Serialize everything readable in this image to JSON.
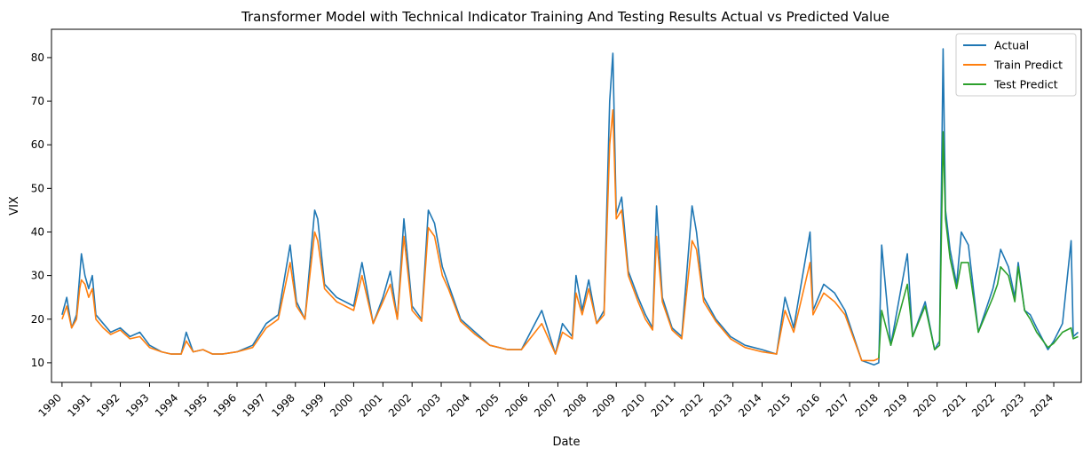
{
  "chart_data": {
    "type": "line",
    "title": "Transformer Model with Technical Indicator Training And Testing Results Actual vs Predicted Value",
    "xlabel": "Date",
    "ylabel": "VIX",
    "xlim": [
      "1989-08-22",
      "2024-12-10"
    ],
    "ylim": [
      5.5,
      86.5
    ],
    "yticks": [
      10,
      20,
      30,
      40,
      50,
      60,
      70,
      80
    ],
    "xticks": [
      "1990",
      "1991",
      "1992",
      "1993",
      "1994",
      "1995",
      "1996",
      "1997",
      "1998",
      "1999",
      "2000",
      "2001",
      "2002",
      "2003",
      "2004",
      "2005",
      "2006",
      "2007",
      "2008",
      "2009",
      "2010",
      "2011",
      "2012",
      "2013",
      "2014",
      "2015",
      "2016",
      "2017",
      "2018",
      "2019",
      "2020",
      "2021",
      "2022",
      "2023",
      "2024"
    ],
    "grid": false,
    "legend_position": "top-right",
    "colors": {
      "actual": "#1f77b4",
      "train": "#ff7f0e",
      "test": "#2ca02c"
    },
    "series": [
      {
        "name": "Actual",
        "x": [
          "1990-01-01",
          "1990-03-01",
          "1990-05-01",
          "1990-07-01",
          "1990-08-10",
          "1990-09-01",
          "1990-10-15",
          "1990-12-01",
          "1991-01-15",
          "1991-03-01",
          "1991-06-01",
          "1991-09-01",
          "1992-01-01",
          "1992-05-01",
          "1992-09-01",
          "1993-01-01",
          "1993-06-01",
          "1993-10-01",
          "1994-02-01",
          "1994-04-05",
          "1994-07-01",
          "1994-11-01",
          "1995-03-01",
          "1995-07-01",
          "1996-01-01",
          "1996-07-15",
          "1997-01-01",
          "1997-06-01",
          "1997-10-27",
          "1998-01-15",
          "1998-05-01",
          "1998-08-31",
          "1998-10-08",
          "1999-01-01",
          "1999-06-01",
          "2000-01-01",
          "2000-04-14",
          "2000-09-01",
          "2001-01-01",
          "2001-04-04",
          "2001-07-01",
          "2001-09-21",
          "2002-01-01",
          "2002-05-01",
          "2002-07-24",
          "2002-10-09",
          "2003-01-15",
          "2003-04-01",
          "2003-09-01",
          "2004-03-01",
          "2004-09-01",
          "2005-04-15",
          "2005-10-01",
          "2006-06-13",
          "2006-12-01",
          "2007-02-27",
          "2007-07-01",
          "2007-08-16",
          "2007-11-01",
          "2008-01-22",
          "2008-05-01",
          "2008-08-01",
          "2008-10-10",
          "2008-11-20",
          "2009-01-01",
          "2009-03-09",
          "2009-06-01",
          "2009-10-01",
          "2010-01-01",
          "2010-04-01",
          "2010-05-20",
          "2010-08-01",
          "2010-12-01",
          "2011-04-01",
          "2011-08-08",
          "2011-10-03",
          "2012-01-01",
          "2012-06-01",
          "2012-12-01",
          "2013-06-01",
          "2014-01-01",
          "2014-07-01",
          "2014-10-15",
          "2015-02-01",
          "2015-08-24",
          "2015-10-01",
          "2016-02-11",
          "2016-06-27",
          "2016-11-04",
          "2017-06-01",
          "2017-11-01",
          "2018-01-01",
          "2018-02-06",
          "2018-06-01",
          "2018-12-24",
          "2019-03-01",
          "2019-08-05",
          "2019-12-01",
          "2020-02-01",
          "2020-03-16",
          "2020-04-15",
          "2020-06-11",
          "2020-09-01",
          "2020-10-30",
          "2021-01-27",
          "2021-06-01",
          "2021-11-30",
          "2022-01-27",
          "2022-03-07",
          "2022-06-13",
          "2022-09-01",
          "2022-10-13",
          "2023-01-01",
          "2023-03-13",
          "2023-06-01",
          "2023-10-20",
          "2024-01-01",
          "2024-04-19",
          "2024-08-05",
          "2024-09-01",
          "2024-11-01"
        ],
        "y": [
          21,
          25,
          18,
          21,
          30,
          35,
          30,
          27,
          30,
          21,
          19,
          17,
          18,
          16,
          17,
          14,
          12.5,
          12,
          12,
          17,
          12.5,
          13,
          12,
          12,
          12.5,
          14,
          19,
          21,
          37,
          24,
          20,
          45,
          43,
          28,
          25,
          23,
          33,
          19,
          25,
          31,
          20,
          43,
          23,
          20,
          45,
          42,
          32,
          28,
          20,
          17,
          14,
          13,
          13,
          22,
          12,
          19,
          16,
          30,
          22,
          29,
          19,
          22,
          70,
          81,
          44,
          48,
          31,
          25,
          21,
          18,
          46,
          25,
          18,
          16,
          46,
          40,
          25,
          20,
          16,
          14,
          13,
          12,
          25,
          18,
          40,
          22,
          28,
          26,
          22,
          10.5,
          9.5,
          10,
          37,
          14,
          35,
          16,
          24,
          13,
          15,
          82,
          45,
          36,
          28,
          40,
          37,
          17,
          27,
          32,
          36,
          32,
          25,
          33,
          22,
          21,
          18,
          13,
          15,
          19,
          38,
          16,
          17
        ]
      },
      {
        "name": "Train Predict",
        "x": [
          "1990-01-01",
          "1990-03-01",
          "1990-05-01",
          "1990-07-01",
          "1990-08-10",
          "1990-09-01",
          "1990-10-15",
          "1990-12-01",
          "1991-01-15",
          "1991-03-01",
          "1991-06-01",
          "1991-09-01",
          "1992-01-01",
          "1992-05-01",
          "1992-09-01",
          "1993-01-01",
          "1993-06-01",
          "1993-10-01",
          "1994-02-01",
          "1994-04-05",
          "1994-07-01",
          "1994-11-01",
          "1995-03-01",
          "1995-07-01",
          "1996-01-01",
          "1996-07-15",
          "1997-01-01",
          "1997-06-01",
          "1997-10-27",
          "1998-01-15",
          "1998-05-01",
          "1998-08-31",
          "1998-10-08",
          "1999-01-01",
          "1999-06-01",
          "2000-01-01",
          "2000-04-14",
          "2000-09-01",
          "2001-01-01",
          "2001-04-04",
          "2001-07-01",
          "2001-09-21",
          "2002-01-01",
          "2002-05-01",
          "2002-07-24",
          "2002-10-09",
          "2003-01-15",
          "2003-04-01",
          "2003-09-01",
          "2004-03-01",
          "2004-09-01",
          "2005-04-15",
          "2005-10-01",
          "2006-06-13",
          "2006-12-01",
          "2007-02-27",
          "2007-07-01",
          "2007-08-16",
          "2007-11-01",
          "2008-01-22",
          "2008-05-01",
          "2008-08-01",
          "2008-10-10",
          "2008-11-20",
          "2009-01-01",
          "2009-03-09",
          "2009-06-01",
          "2009-10-01",
          "2010-01-01",
          "2010-04-01",
          "2010-05-20",
          "2010-08-01",
          "2010-12-01",
          "2011-04-01",
          "2011-08-08",
          "2011-10-03",
          "2012-01-01",
          "2012-06-01",
          "2012-12-01",
          "2013-06-01",
          "2014-01-01",
          "2014-07-01",
          "2014-10-15",
          "2015-02-01",
          "2015-08-24",
          "2015-10-01",
          "2016-02-11",
          "2016-06-27",
          "2016-11-04",
          "2017-06-01",
          "2017-11-01",
          "2018-01-01"
        ],
        "y": [
          20,
          23,
          18,
          20,
          27,
          29,
          28,
          25,
          27,
          20,
          18,
          16.5,
          17.5,
          15.5,
          16,
          13.5,
          12.5,
          12,
          12,
          15,
          12.5,
          13,
          12,
          12,
          12.5,
          13.5,
          18,
          20,
          33,
          23,
          20,
          40,
          38,
          27,
          24,
          22,
          30,
          19,
          24,
          28,
          20,
          39,
          22,
          19.5,
          41,
          39,
          30,
          27,
          19.5,
          16.5,
          14,
          13,
          13,
          19,
          12,
          17,
          15.5,
          26,
          21,
          27,
          19,
          21,
          60,
          68,
          43,
          45,
          30,
          24,
          20,
          17.5,
          39,
          24,
          17.5,
          15.5,
          38,
          36,
          24,
          19.5,
          15.5,
          13.5,
          12.5,
          12,
          22,
          17,
          33,
          21,
          26,
          24,
          21,
          10.5,
          10.5,
          11
        ]
      },
      {
        "name": "Test Predict",
        "x": [
          "2018-01-01",
          "2018-02-06",
          "2018-06-01",
          "2018-12-24",
          "2019-03-01",
          "2019-08-05",
          "2019-12-01",
          "2020-02-01",
          "2020-03-16",
          "2020-04-15",
          "2020-06-11",
          "2020-09-01",
          "2020-10-30",
          "2021-01-27",
          "2021-06-01",
          "2021-11-30",
          "2022-01-27",
          "2022-03-07",
          "2022-06-13",
          "2022-09-01",
          "2022-10-13",
          "2023-01-01",
          "2023-03-13",
          "2023-06-01",
          "2023-10-20",
          "2024-01-01",
          "2024-04-19",
          "2024-08-05",
          "2024-09-01",
          "2024-11-01"
        ],
        "y": [
          11,
          22,
          14,
          28,
          16,
          23,
          13,
          14,
          63,
          43,
          34,
          27,
          33,
          33,
          17,
          25,
          28,
          32,
          30,
          24,
          32,
          22,
          20,
          17,
          13.5,
          14.5,
          17,
          18,
          15.5,
          16
        ]
      }
    ]
  }
}
